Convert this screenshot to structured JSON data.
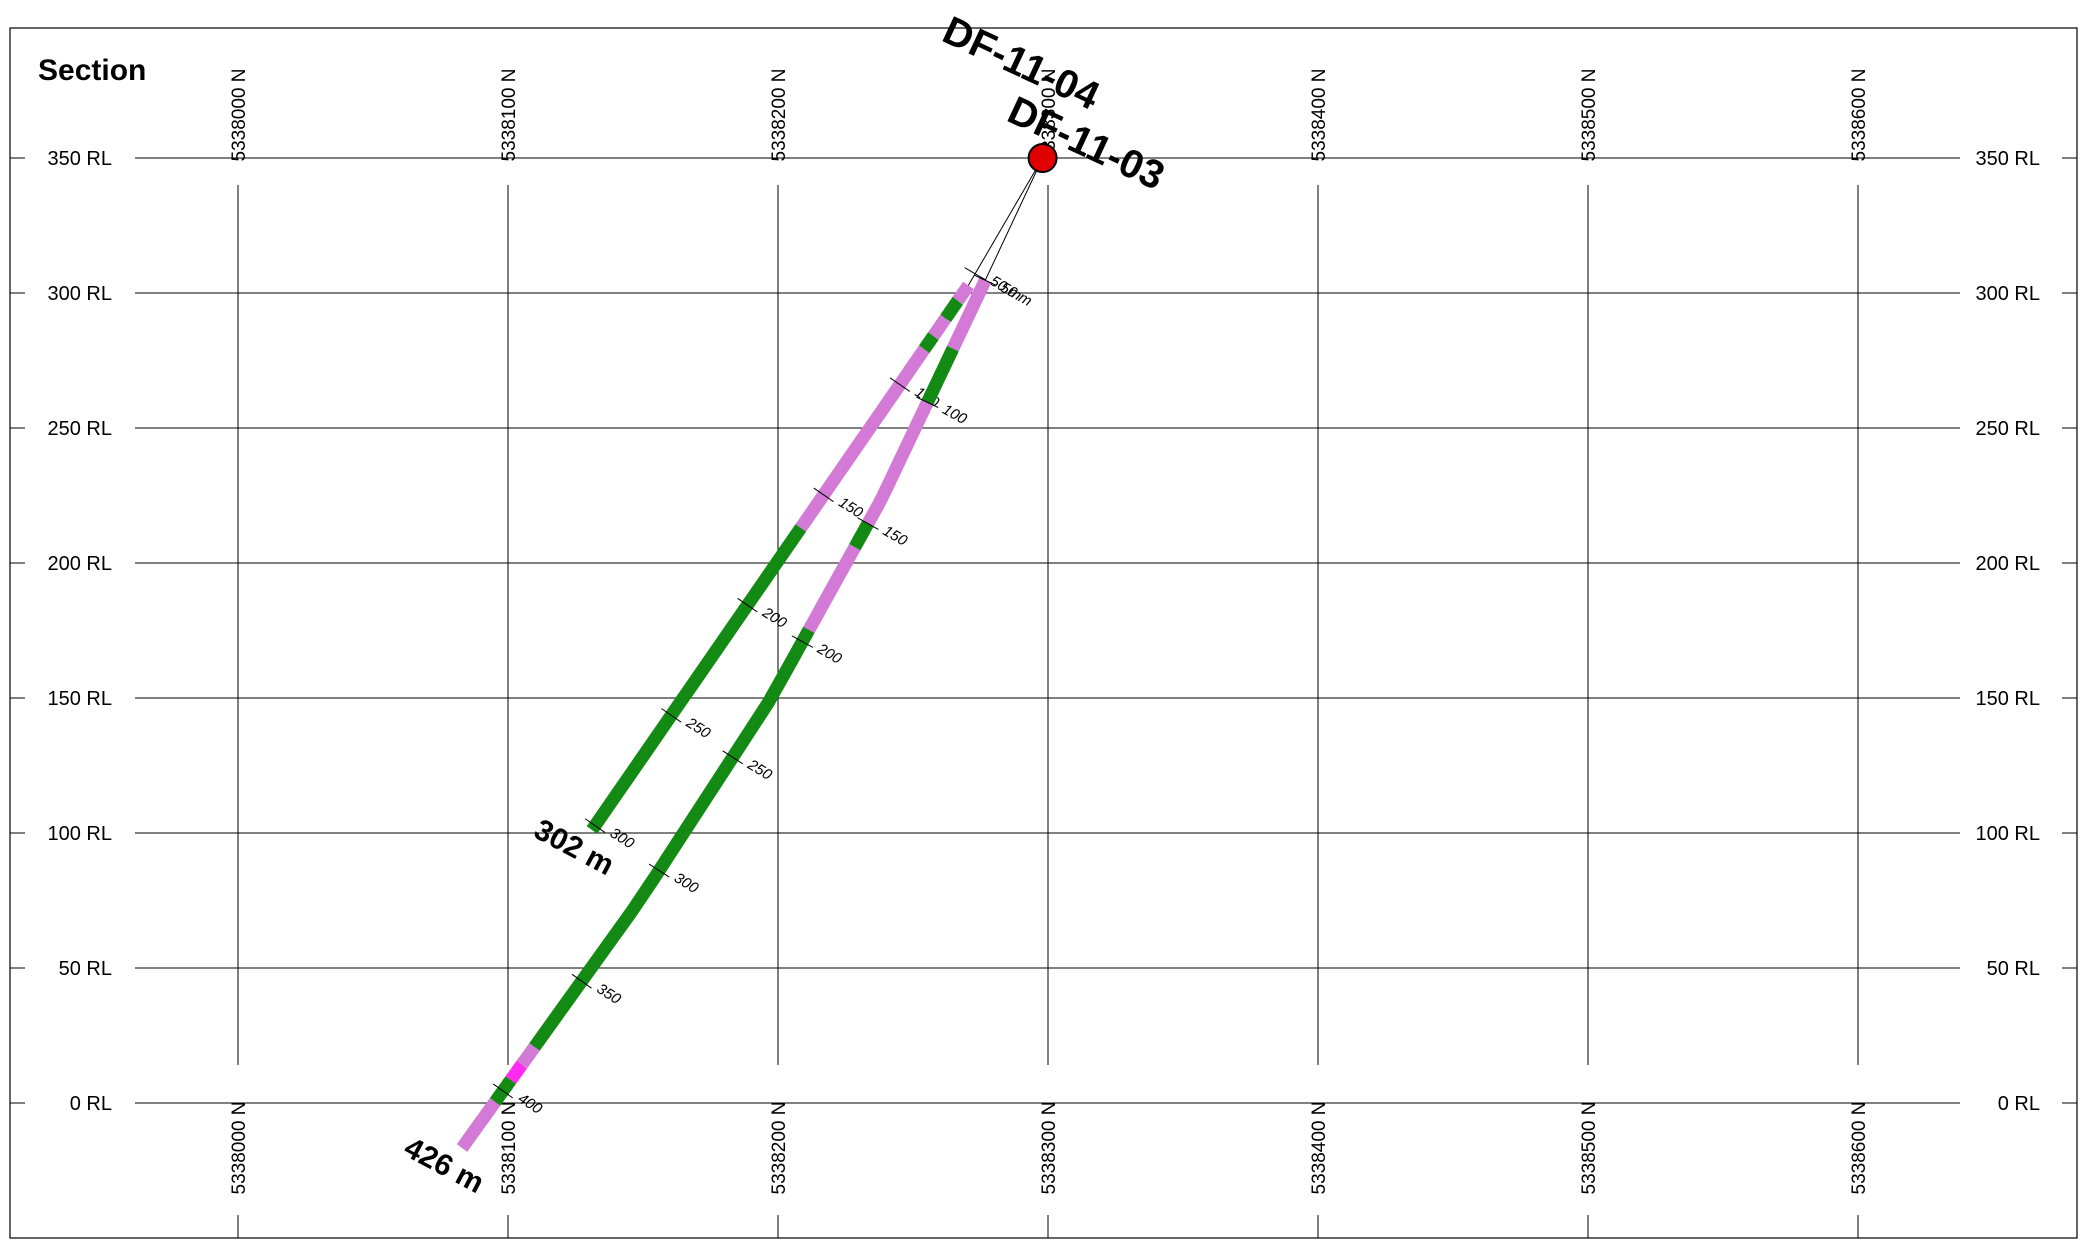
{
  "title": "Section",
  "rl_labels": [
    "350 RL",
    "300 RL",
    "250 RL",
    "200 RL",
    "150 RL",
    "100 RL",
    "50 RL",
    "0 RL"
  ],
  "rl_values": [
    350,
    300,
    250,
    200,
    150,
    100,
    50,
    0
  ],
  "northing_labels": [
    "5338000 N",
    "5338100 N",
    "5338200 N",
    "5338300 N",
    "5338400 N",
    "5338500 N",
    "5338600 N"
  ],
  "northing_values": [
    5338000,
    5338100,
    5338200,
    5338300,
    5338400,
    5338500,
    5338600
  ],
  "collar": {
    "northing": 5338298,
    "rl": 350,
    "color": "#e00000"
  },
  "holes": [
    {
      "name": "DF-11-04",
      "end_label": "302 m",
      "depth_ticks": [
        "50 m",
        "100",
        "150",
        "200",
        "250",
        "300"
      ],
      "segments": [
        {
          "from": 0,
          "to": 55,
          "type": "none"
        },
        {
          "from": 55,
          "to": 62,
          "type": "pink"
        },
        {
          "from": 62,
          "to": 70,
          "type": "green"
        },
        {
          "from": 70,
          "to": 78,
          "type": "pink"
        },
        {
          "from": 78,
          "to": 84,
          "type": "green"
        },
        {
          "from": 84,
          "to": 165,
          "type": "pink"
        },
        {
          "from": 165,
          "to": 302,
          "type": "green"
        }
      ]
    },
    {
      "name": "DF-11-03",
      "end_label": "426 m",
      "depth_ticks": [
        "50 m",
        "100",
        "150",
        "200",
        "250",
        "300",
        "350",
        "400"
      ],
      "segments": [
        {
          "from": 0,
          "to": 50,
          "type": "none"
        },
        {
          "from": 50,
          "to": 78,
          "type": "pink"
        },
        {
          "from": 78,
          "to": 100,
          "type": "green"
        },
        {
          "from": 100,
          "to": 150,
          "type": "pink"
        },
        {
          "from": 150,
          "to": 160,
          "type": "green"
        },
        {
          "from": 160,
          "to": 195,
          "type": "pink"
        },
        {
          "from": 195,
          "to": 380,
          "type": "green"
        },
        {
          "from": 380,
          "to": 388,
          "type": "pink"
        },
        {
          "from": 388,
          "to": 395,
          "type": "magenta"
        },
        {
          "from": 395,
          "to": 405,
          "type": "green"
        },
        {
          "from": 405,
          "to": 426,
          "type": "pink"
        }
      ]
    }
  ],
  "colors": {
    "green": "#138a13",
    "pink": "#d27ad6",
    "magenta": "#ff2cf0",
    "none": "#ffffff"
  }
}
